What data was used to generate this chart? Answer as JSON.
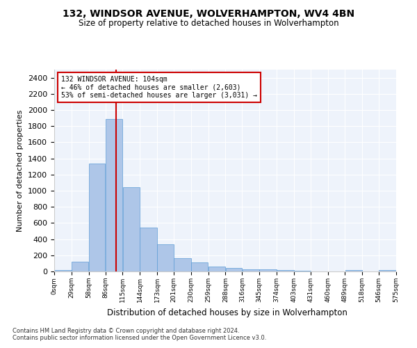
{
  "title1": "132, WINDSOR AVENUE, WOLVERHAMPTON, WV4 4BN",
  "title2": "Size of property relative to detached houses in Wolverhampton",
  "xlabel": "Distribution of detached houses by size in Wolverhampton",
  "ylabel": "Number of detached properties",
  "annotation_line1": "132 WINDSOR AVENUE: 104sqm",
  "annotation_line2": "← 46% of detached houses are smaller (2,603)",
  "annotation_line3": "53% of semi-detached houses are larger (3,031) →",
  "property_size_sqm": 104,
  "bins": [
    0,
    29,
    58,
    86,
    115,
    144,
    173,
    201,
    230,
    259,
    288,
    316,
    345,
    374,
    403,
    431,
    460,
    489,
    518,
    546,
    575
  ],
  "bar_heights": [
    15,
    120,
    1340,
    1890,
    1045,
    545,
    335,
    160,
    110,
    60,
    40,
    30,
    25,
    20,
    5,
    0,
    0,
    20,
    0,
    15
  ],
  "bar_color": "#aec6e8",
  "bar_edge_color": "#5b9bd5",
  "vline_color": "#cc0000",
  "vline_x": 104,
  "annotation_box_color": "#cc0000",
  "annotation_text_color": "#000000",
  "ylim": [
    0,
    2500
  ],
  "yticks": [
    0,
    200,
    400,
    600,
    800,
    1000,
    1200,
    1400,
    1600,
    1800,
    2000,
    2200,
    2400
  ],
  "bg_color": "#eef3fb",
  "footer1": "Contains HM Land Registry data © Crown copyright and database right 2024.",
  "footer2": "Contains public sector information licensed under the Open Government Licence v3.0."
}
